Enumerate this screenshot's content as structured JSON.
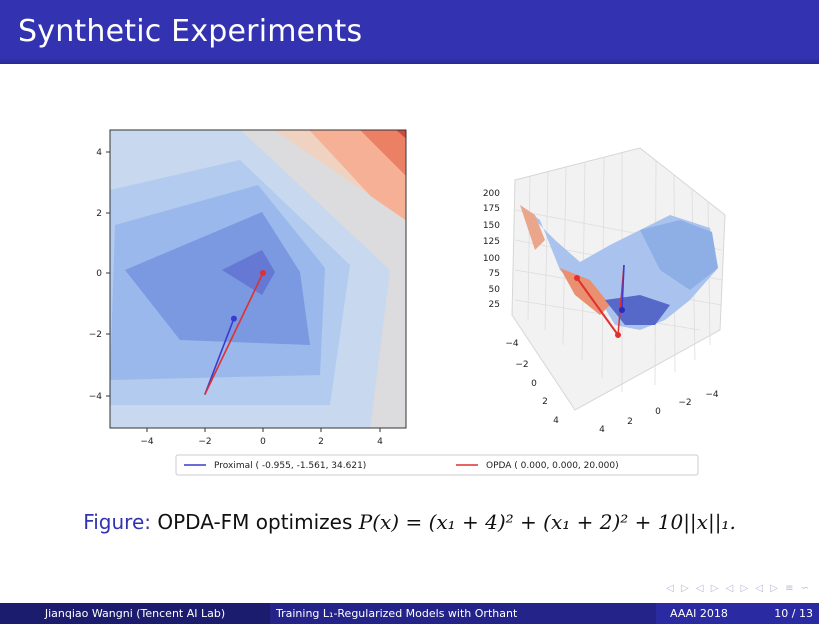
{
  "slide": {
    "title": "Synthetic Experiments"
  },
  "chart_data": [
    {
      "type": "contour",
      "xlim": [
        -5,
        5
      ],
      "ylim": [
        -5,
        5
      ],
      "xticks": [
        "−4",
        "−2",
        "0",
        "2",
        "4"
      ],
      "yticks": [
        "4",
        "2",
        "0",
        "−2",
        "−4"
      ],
      "colormap": "coolwarm",
      "series": [
        {
          "name": "Proximal",
          "color": "#3a3ad0",
          "path": [
            [
              -2,
              -4
            ],
            [
              -1,
              -1.5
            ]
          ]
        },
        {
          "name": "OPDA",
          "color": "#e03030",
          "path": [
            [
              -2,
              -4
            ],
            [
              0,
              0
            ]
          ]
        }
      ]
    },
    {
      "type": "surface3d",
      "zticks": [
        "200",
        "175",
        "150",
        "125",
        "100",
        "75",
        "50",
        "25"
      ],
      "y_axis_ticks": [
        "−4",
        "−2",
        "0",
        "2",
        "4"
      ],
      "x_axis_ticks": [
        "4",
        "2",
        "0",
        "−2",
        "−4"
      ],
      "colormap": "coolwarm"
    }
  ],
  "legend": {
    "proximal": "Proximal ( -0.955,  -1.561,  34.621)",
    "opda": "OPDA (  0.000,   0.000,  20.000)"
  },
  "caption": {
    "label": "Figure:",
    "text": "OPDA-FM optimizes",
    "formula": "P(x) = (x₁ + 4)² + (x₁ + 2)² + 10||x||₁."
  },
  "footer": {
    "author": "Jianqiao Wangni   (Tencent AI Lab)",
    "talk": "Training L₁-Regularized Models with Orthant",
    "conference": "AAAI 2018",
    "page": "10 / 13"
  },
  "colors": {
    "header": "#3333b2",
    "footer_left": "#1c1c6e",
    "footer_mid": "#23238a",
    "footer_right": "#2a2aa2"
  }
}
